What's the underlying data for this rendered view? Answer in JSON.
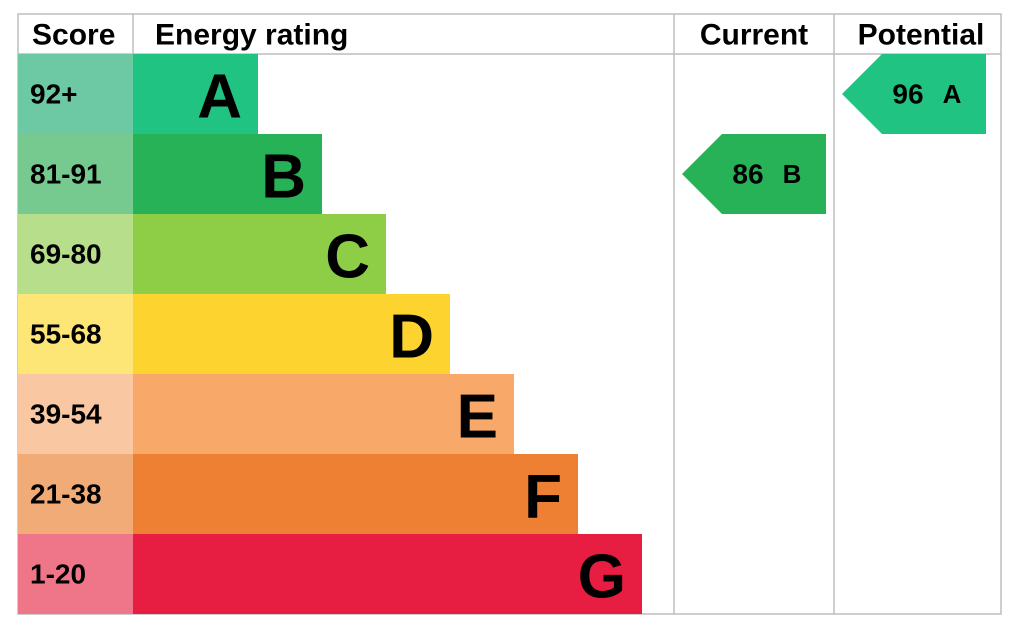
{
  "headers": {
    "score": "Score",
    "rating": "Energy rating",
    "current": "Current",
    "potential": "Potential"
  },
  "bands": [
    {
      "score": "92+",
      "letter": "A",
      "color": "#21c383",
      "light": "#6cc9a4"
    },
    {
      "score": "81-91",
      "letter": "B",
      "color": "#27b257",
      "light": "#76c98f"
    },
    {
      "score": "69-80",
      "letter": "C",
      "color": "#8dce46",
      "light": "#b6de8b"
    },
    {
      "score": "55-68",
      "letter": "D",
      "color": "#fdd32f",
      "light": "#fde576"
    },
    {
      "score": "39-54",
      "letter": "E",
      "color": "#f8a96a",
      "light": "#f9c8a2"
    },
    {
      "score": "21-38",
      "letter": "F",
      "color": "#ed8033",
      "light": "#f1ab76"
    },
    {
      "score": "1-20",
      "letter": "G",
      "color": "#e71d41",
      "light": "#ef7689"
    }
  ],
  "current": {
    "value": 86,
    "letter": "B"
  },
  "potential": {
    "value": 96,
    "letter": "A"
  }
}
